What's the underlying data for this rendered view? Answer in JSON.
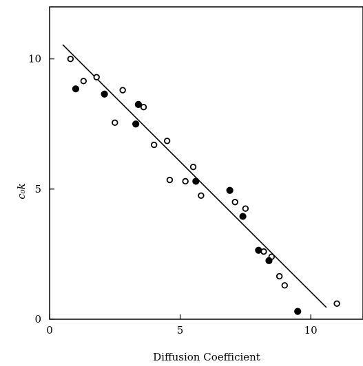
{
  "chart_data": {
    "type": "scatter",
    "title": "",
    "xlabel": "Diffusion Coefficient",
    "ylabel": "c₀k",
    "xlim": [
      0,
      12
    ],
    "ylim": [
      0,
      12
    ],
    "xticks": [
      0,
      5,
      10
    ],
    "xtick_labels": [
      "0",
      "5",
      "10"
    ],
    "yticks": [
      0,
      5,
      10
    ],
    "ytick_labels": [
      "0",
      "5",
      "10"
    ],
    "grid": false,
    "legend": null,
    "marker_color": "#000000",
    "series": [
      {
        "marker": "open-circle",
        "points": [
          [
            0.8,
            10.0
          ],
          [
            1.3,
            9.15
          ],
          [
            1.8,
            9.3
          ],
          [
            2.5,
            7.55
          ],
          [
            2.8,
            8.8
          ],
          [
            3.6,
            8.15
          ],
          [
            4.0,
            6.7
          ],
          [
            4.5,
            6.85
          ],
          [
            4.6,
            5.35
          ],
          [
            5.2,
            5.3
          ],
          [
            5.5,
            5.85
          ],
          [
            5.8,
            4.75
          ],
          [
            7.1,
            4.5
          ],
          [
            7.5,
            4.25
          ],
          [
            8.2,
            2.6
          ],
          [
            8.5,
            2.4
          ],
          [
            8.8,
            1.65
          ],
          [
            9.0,
            1.3
          ],
          [
            11.0,
            0.6
          ]
        ]
      },
      {
        "marker": "filled-circle",
        "points": [
          [
            1.0,
            8.85
          ],
          [
            2.1,
            8.65
          ],
          [
            3.3,
            7.5
          ],
          [
            3.4,
            8.25
          ],
          [
            5.6,
            5.3
          ],
          [
            6.9,
            4.95
          ],
          [
            7.4,
            3.95
          ],
          [
            8.0,
            2.65
          ],
          [
            8.4,
            2.25
          ],
          [
            9.5,
            0.3
          ]
        ]
      }
    ],
    "fit_line": {
      "x": [
        0.5,
        10.6
      ],
      "y": [
        10.55,
        0.45
      ]
    }
  }
}
